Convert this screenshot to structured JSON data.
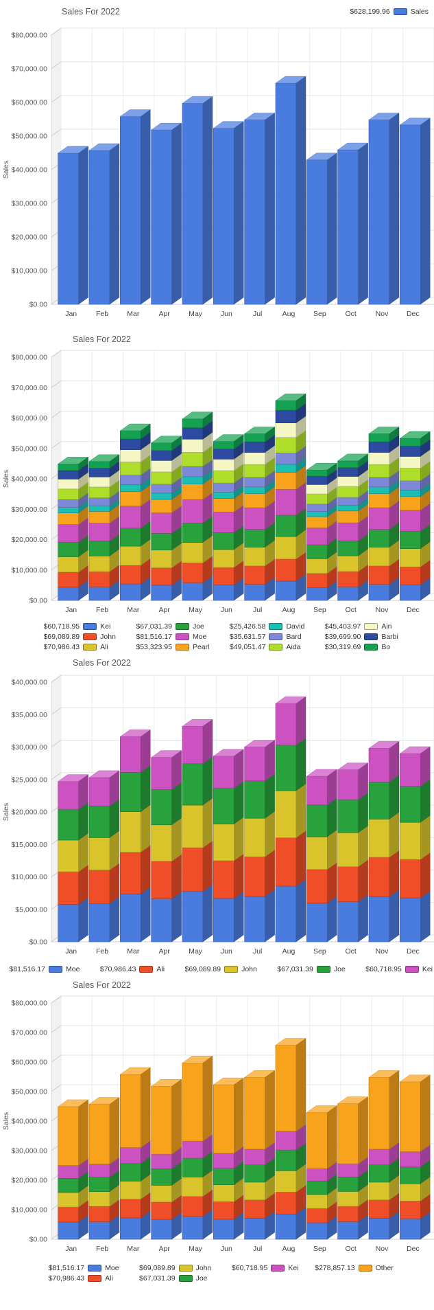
{
  "months": [
    "Jan",
    "Feb",
    "Mar",
    "Apr",
    "May",
    "Jun",
    "Jul",
    "Aug",
    "Sep",
    "Oct",
    "Nov",
    "Dec"
  ],
  "axis_ticks_80k": [
    "$0.00",
    "$10,000.00",
    "$20,000.00",
    "$30,000.00",
    "$40,000.00",
    "$50,000.00",
    "$60,000.00",
    "$70,000.00",
    "$80,000.00"
  ],
  "axis_ticks_40k": [
    "$0.00",
    "$5,000.00",
    "$10,000.00",
    "$15,000.00",
    "$20,000.00",
    "$25,000.00",
    "$30,000.00",
    "$35,000.00",
    "$40,000.00"
  ],
  "chart_data": [
    {
      "type": "bar",
      "variant": "3d-bar",
      "title": "Sales For 2022",
      "ylabel": "Sales",
      "legend_position": "top-right",
      "axis": {
        "min": 0,
        "max": 80000,
        "step": 10000,
        "tick_labels": [
          "$0.00",
          "$10,000.00",
          "$20,000.00",
          "$30,000.00",
          "$40,000.00",
          "$50,000.00",
          "$60,000.00",
          "$70,000.00",
          "$80,000.00"
        ]
      },
      "series": [
        {
          "name": "Sales",
          "total": 628199.96,
          "total_label": "$628,199.96",
          "color": "#4a7ce0"
        }
      ],
      "legend_display": [
        0
      ],
      "monthly_totals_est": [
        44900,
        45700,
        55800,
        51800,
        59700,
        52300,
        54800,
        65700,
        42900,
        45900,
        54800,
        53300
      ]
    },
    {
      "type": "bar",
      "variant": "3d-stacked-bar",
      "title": "Sales For 2022",
      "ylabel": "Sales",
      "legend_position": "bottom",
      "legend_columns": 4,
      "axis": {
        "min": 0,
        "max": 80000,
        "step": 10000,
        "tick_labels": [
          "$0.00",
          "$10,000.00",
          "$20,000.00",
          "$30,000.00",
          "$40,000.00",
          "$50,000.00",
          "$60,000.00",
          "$70,000.00",
          "$80,000.00"
        ]
      },
      "series": [
        {
          "name": "Kei",
          "total": 60718.95,
          "total_label": "$60,718.95",
          "color": "#4a7ce0"
        },
        {
          "name": "John",
          "total": 69089.89,
          "total_label": "$69,089.89",
          "color": "#f04e28"
        },
        {
          "name": "Ali",
          "total": 70986.43,
          "total_label": "$70,986.43",
          "color": "#d9c42c"
        },
        {
          "name": "Joe",
          "total": 67031.39,
          "total_label": "$67,031.39",
          "color": "#28a23c"
        },
        {
          "name": "Moe",
          "total": 81516.17,
          "total_label": "$81,516.17",
          "color": "#cc52c2"
        },
        {
          "name": "Pearl",
          "total": 53323.95,
          "total_label": "$53,323.95",
          "color": "#f9a21c"
        },
        {
          "name": "David",
          "total": 25426.58,
          "total_label": "$25,426.58",
          "color": "#1cbfb4"
        },
        {
          "name": "Bard",
          "total": 35631.57,
          "total_label": "$35,631.57",
          "color": "#7e88d8"
        },
        {
          "name": "Aida",
          "total": 49051.47,
          "total_label": "$49,051.47",
          "color": "#aede2a"
        },
        {
          "name": "Ain",
          "total": 45403.97,
          "total_label": "$45,403.97",
          "color": "#f4f6c4"
        },
        {
          "name": "Barbi",
          "total": 39699.9,
          "total_label": "$39,699.90",
          "color": "#2c4aa0"
        },
        {
          "name": "Bo",
          "total": 30319.69,
          "total_label": "$30,319.69",
          "color": "#14a252"
        }
      ],
      "legend_display": [
        0,
        3,
        6,
        9,
        1,
        4,
        7,
        10,
        2,
        5,
        8,
        11
      ],
      "monthly_totals_est": [
        44900,
        45700,
        55800,
        51800,
        59700,
        52300,
        54800,
        65700,
        42900,
        45900,
        54800,
        53300
      ]
    },
    {
      "type": "bar",
      "variant": "3d-stacked-bar",
      "title": "Sales For 2022",
      "ylabel": "Sales",
      "legend_position": "bottom",
      "legend_columns": 5,
      "axis": {
        "min": 0,
        "max": 40000,
        "step": 5000,
        "tick_labels": [
          "$0.00",
          "$5,000.00",
          "$10,000.00",
          "$15,000.00",
          "$20,000.00",
          "$25,000.00",
          "$30,000.00",
          "$35,000.00",
          "$40,000.00"
        ]
      },
      "series": [
        {
          "name": "Moe",
          "total": 81516.17,
          "total_label": "$81,516.17",
          "color": "#4a7ce0"
        },
        {
          "name": "Ali",
          "total": 70986.43,
          "total_label": "$70,986.43",
          "color": "#f04e28"
        },
        {
          "name": "John",
          "total": 69089.89,
          "total_label": "$69,089.89",
          "color": "#d9c42c"
        },
        {
          "name": "Joe",
          "total": 67031.39,
          "total_label": "$67,031.39",
          "color": "#28a23c"
        },
        {
          "name": "Kei",
          "total": 60718.95,
          "total_label": "$60,718.95",
          "color": "#cc52c2"
        }
      ],
      "legend_display": [
        0,
        1,
        2,
        3,
        4
      ],
      "monthly_totals_est": [
        24700,
        25300,
        31600,
        28400,
        33200,
        28600,
        30000,
        36700,
        25500,
        26500,
        29800,
        29000
      ]
    },
    {
      "type": "bar",
      "variant": "3d-stacked-bar",
      "title": "Sales For 2022",
      "ylabel": "Sales",
      "legend_position": "bottom",
      "legend_columns": 4,
      "axis": {
        "min": 0,
        "max": 80000,
        "step": 10000,
        "tick_labels": [
          "$0.00",
          "$10,000.00",
          "$20,000.00",
          "$30,000.00",
          "$40,000.00",
          "$50,000.00",
          "$60,000.00",
          "$70,000.00",
          "$80,000.00"
        ]
      },
      "series": [
        {
          "name": "Moe",
          "total": 81516.17,
          "total_label": "$81,516.17",
          "color": "#4a7ce0"
        },
        {
          "name": "Ali",
          "total": 70986.43,
          "total_label": "$70,986.43",
          "color": "#f04e28"
        },
        {
          "name": "John",
          "total": 69089.89,
          "total_label": "$69,089.89",
          "color": "#d9c42c"
        },
        {
          "name": "Joe",
          "total": 67031.39,
          "total_label": "$67,031.39",
          "color": "#28a23c"
        },
        {
          "name": "Kei",
          "total": 60718.95,
          "total_label": "$60,718.95",
          "color": "#cc52c2"
        },
        {
          "name": "Other",
          "total": 278857.13,
          "total_label": "$278,857.13",
          "color": "#f9a21c"
        }
      ],
      "legend_display": [
        0,
        2,
        4,
        5,
        1,
        3
      ],
      "monthly_totals_est": [
        44900,
        45700,
        55800,
        51800,
        59700,
        52300,
        54800,
        65700,
        42900,
        45900,
        54800,
        53300
      ]
    }
  ]
}
